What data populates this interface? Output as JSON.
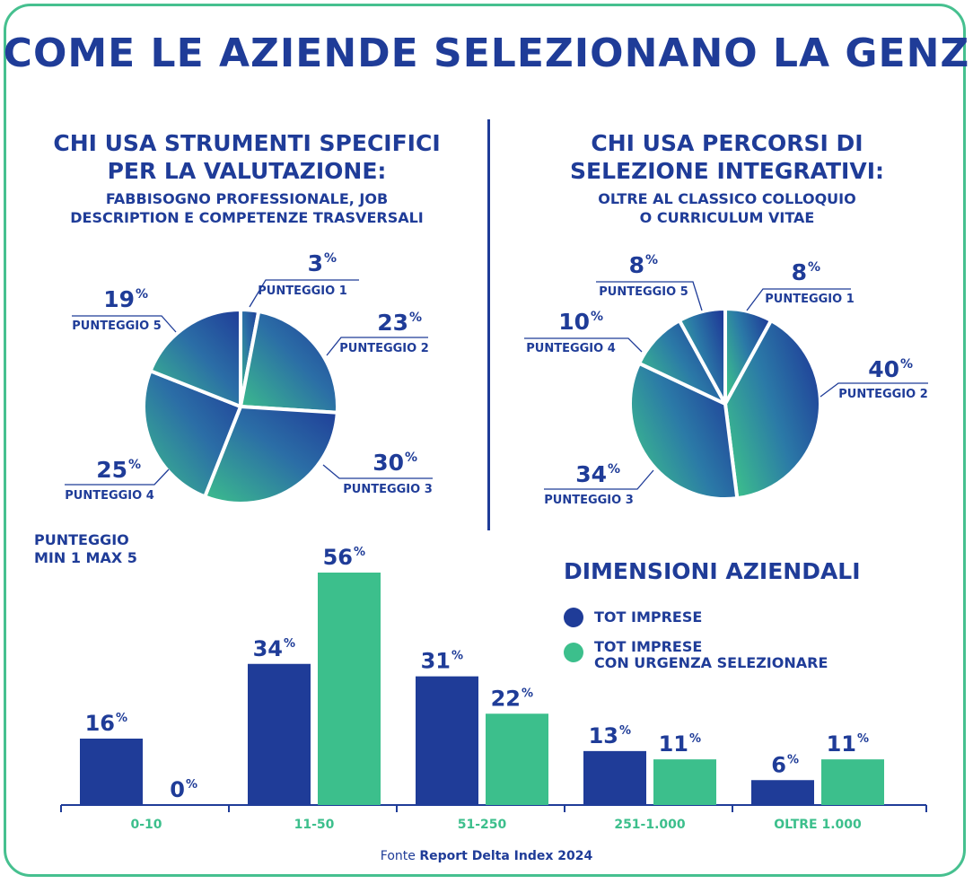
{
  "title": "COME LE AZIENDE SELEZIONANO LA GENZ",
  "left_section": {
    "heading_line1": "CHI USA STRUMENTI SPECIFICI",
    "heading_line2": "PER LA VALUTAZIONE:",
    "sub_line1": "FABBISOGNO PROFESSIONALE, JOB",
    "sub_line2": "DESCRIPTION E COMPETENZE TRASVERSALI"
  },
  "right_section": {
    "heading_line1": "CHI USA PERCORSI DI",
    "heading_line2": "SELEZIONE INTEGRATIVI:",
    "sub_line1": "OLTRE AL CLASSICO COLLOQUIO",
    "sub_line2": "O CURRICULUM VITAE"
  },
  "score_note": {
    "line1": "PUNTEGGIO",
    "line2": "MIN 1 MAX 5"
  },
  "bar_title": "DIMENSIONI AZIENDALI",
  "legend": {
    "series1_line1": "TOT IMPRESE",
    "series2_line1": "TOT IMPRESE",
    "series2_line2": "CON URGENZA SELEZIONARE"
  },
  "source": {
    "prefix": "Fonte",
    "name": "Report Delta Index 2024"
  },
  "colors": {
    "dark_blue": "#1f3c98",
    "green": "#3cbf8c",
    "frame": "#46c08f",
    "pie_gradient": [
      "#1f3c98",
      "#2f6fa6",
      "#2fa3a0",
      "#3cbf8c"
    ]
  },
  "chart_data": [
    {
      "type": "pie",
      "slices": [
        {
          "label": "PUNTEGGIO 1",
          "value": 3
        },
        {
          "label": "PUNTEGGIO 2",
          "value": 23
        },
        {
          "label": "PUNTEGGIO 3",
          "value": 30
        },
        {
          "label": "PUNTEGGIO 4",
          "value": 25
        },
        {
          "label": "PUNTEGGIO 5",
          "value": 19
        }
      ],
      "unit": "%"
    },
    {
      "type": "pie",
      "slices": [
        {
          "label": "PUNTEGGIO 1",
          "value": 8
        },
        {
          "label": "PUNTEGGIO 2",
          "value": 40
        },
        {
          "label": "PUNTEGGIO 3",
          "value": 34
        },
        {
          "label": "PUNTEGGIO 4",
          "value": 10
        },
        {
          "label": "PUNTEGGIO 5",
          "value": 8
        }
      ],
      "unit": "%"
    },
    {
      "type": "bar",
      "title": "DIMENSIONI AZIENDALI",
      "categories": [
        "0-10",
        "11-50",
        "51-250",
        "251-1.000",
        "OLTRE 1.000"
      ],
      "series": [
        {
          "name": "TOT IMPRESE",
          "values": [
            16,
            34,
            31,
            13,
            6
          ],
          "color": "#1f3c98"
        },
        {
          "name": "TOT IMPRESE CON URGENZA SELEZIONARE",
          "values": [
            0,
            56,
            22,
            11,
            11
          ],
          "color": "#3cbf8c"
        }
      ],
      "unit": "%",
      "ylim": [
        0,
        56
      ],
      "grid": false,
      "legend_position": "right"
    }
  ]
}
